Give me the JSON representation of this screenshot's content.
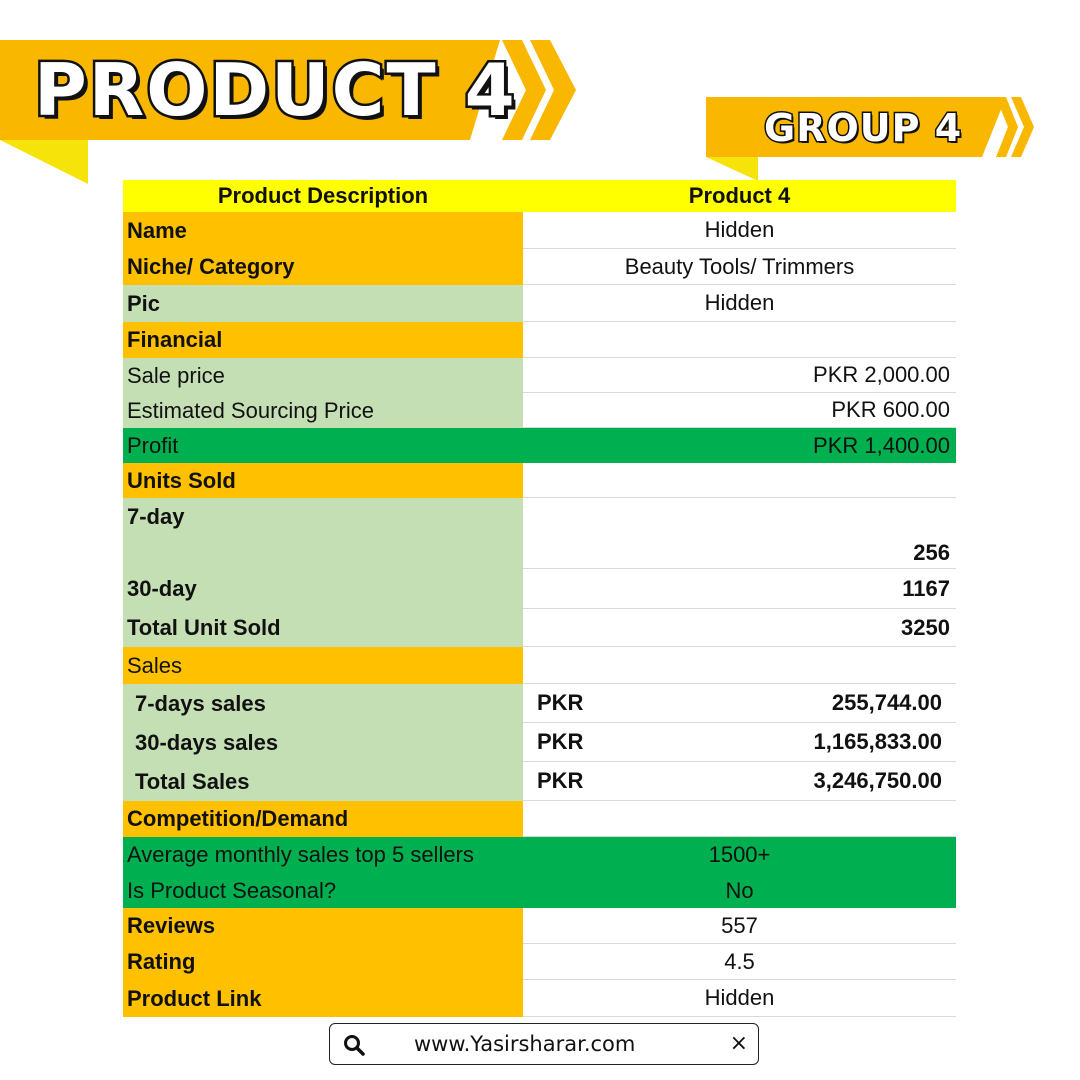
{
  "banner": {
    "title": "PRODUCT 4",
    "group": "GROUP 4"
  },
  "colors": {
    "orange": "#ffc000",
    "light_green": "#c5dfb4",
    "dark_green": "#00b050",
    "yellow": "#ffff00",
    "banner": "#f9b700"
  },
  "table": {
    "header": {
      "label": "Product Description",
      "value": "Product 4"
    },
    "name": {
      "label": "Name",
      "value": "Hidden"
    },
    "category": {
      "label": "Niche/ Category",
      "value": "Beauty Tools/ Trimmers"
    },
    "pic": {
      "label": "Pic",
      "value": "Hidden"
    },
    "financial": {
      "label": "Financial"
    },
    "sale_price": {
      "label": "Sale price",
      "value": "PKR 2,000.00"
    },
    "sourcing_price": {
      "label": "Estimated Sourcing Price",
      "value": "PKR 600.00"
    },
    "profit": {
      "label": "Profit",
      "value": "PKR 1,400.00"
    },
    "units_sold": {
      "label": "Units Sold"
    },
    "units_7day": {
      "label": "7-day",
      "value": "256"
    },
    "units_30day": {
      "label": "30-day",
      "value": "1167"
    },
    "units_total": {
      "label": "Total Unit Sold",
      "value": "3250"
    },
    "sales": {
      "label": "Sales"
    },
    "sales_7day": {
      "label": "7-days sales",
      "currency": "PKR",
      "value": "255,744.00"
    },
    "sales_30day": {
      "label": "30-days sales",
      "currency": "PKR",
      "value": "1,165,833.00"
    },
    "sales_total": {
      "label": "Total Sales",
      "currency": "PKR",
      "value": "3,246,750.00"
    },
    "competition": {
      "label": "Competition/Demand"
    },
    "avg_monthly": {
      "label": "Average monthly sales top 5 sellers",
      "value": "1500+"
    },
    "seasonal": {
      "label": "Is Product Seasonal?",
      "value": "No"
    },
    "reviews": {
      "label": "Reviews",
      "value": "557"
    },
    "rating": {
      "label": "Rating",
      "value": "4.5"
    },
    "link": {
      "label": "Product Link",
      "value": "Hidden"
    }
  },
  "footer": {
    "url": "www.Yasirsharar.com",
    "search_icon": "search-icon",
    "close_icon": "close-icon",
    "close_glyph": "×"
  }
}
